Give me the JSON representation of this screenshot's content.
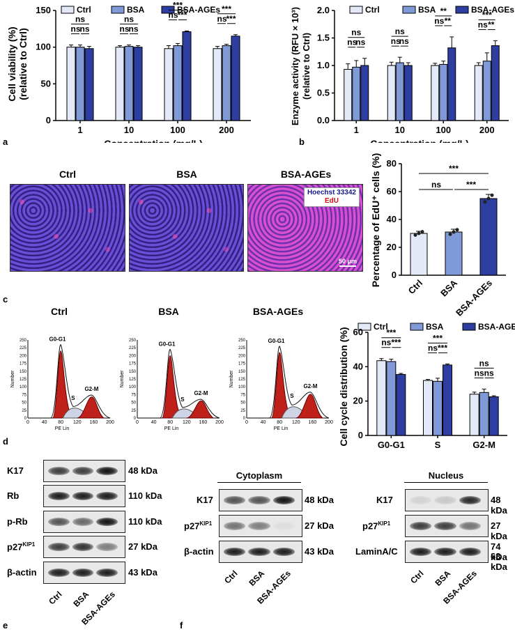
{
  "colors": {
    "ctrl": "#e3e9f6",
    "bsa": "#7f9ad6",
    "ages": "#2e3da0"
  },
  "legend": [
    "Ctrl",
    "BSA",
    "BSA-AGEs"
  ],
  "panel_labels": {
    "a": "a",
    "b": "b",
    "c": "c",
    "d": "d",
    "e": "e",
    "f": "f"
  },
  "chart_data": [
    {
      "id": "a",
      "type": "bar",
      "title": "",
      "ylabel_line1": "Cell viability (%)",
      "ylabel_line2": "(relative to Ctrl)",
      "xlabel": "Concentration (mg/L)",
      "categories": [
        "1",
        "10",
        "100",
        "200"
      ],
      "ylim": [
        0,
        150
      ],
      "yticks": [
        "0",
        "50",
        "100",
        "150"
      ],
      "series": [
        {
          "name": "Ctrl",
          "values": [
            100,
            100,
            98,
            98
          ],
          "err": [
            3,
            2,
            4,
            3
          ]
        },
        {
          "name": "BSA",
          "values": [
            100,
            101,
            102,
            102
          ],
          "err": [
            3,
            2,
            3,
            2
          ]
        },
        {
          "name": "BSA-AGEs",
          "values": [
            98,
            100,
            121,
            115
          ],
          "err": [
            3,
            2,
            1,
            2
          ]
        }
      ],
      "annotations": [
        [
          "ns",
          "ns",
          "ns"
        ],
        [
          "ns",
          "ns",
          "ns"
        ],
        [
          "***",
          "ns",
          "***"
        ],
        [
          "***",
          "ns",
          "***"
        ]
      ]
    },
    {
      "id": "b",
      "type": "bar",
      "ylabel_line1": "Enzyme activity (RFU × 10³)",
      "ylabel_line2": "(relative to Ctrl)",
      "xlabel": "Concentration (mg/L)",
      "categories": [
        "1",
        "10",
        "100",
        "200"
      ],
      "ylim": [
        0,
        2.0
      ],
      "yticks": [
        "0.0",
        "0.5",
        "1.0",
        "1.5",
        "2.0"
      ],
      "series": [
        {
          "name": "Ctrl",
          "values": [
            0.93,
            1.0,
            1.0,
            1.0
          ],
          "err": [
            0.1,
            0.06,
            0.04,
            0.05
          ]
        },
        {
          "name": "BSA",
          "values": [
            0.97,
            1.05,
            1.02,
            1.08
          ],
          "err": [
            0.12,
            0.1,
            0.06,
            0.15
          ]
        },
        {
          "name": "BSA-AGEs",
          "values": [
            1.0,
            1.0,
            1.32,
            1.36
          ],
          "err": [
            0.13,
            0.05,
            0.2,
            0.09
          ]
        }
      ],
      "annotations": [
        [
          "ns",
          "ns",
          "ns"
        ],
        [
          "ns",
          "ns",
          "ns"
        ],
        [
          "**",
          "ns",
          "**"
        ],
        [
          "***",
          "ns",
          "**"
        ]
      ]
    },
    {
      "id": "c",
      "type": "bar",
      "ylabel": "Percentage of EdU⁺ cells (%)",
      "categories": [
        "Ctrl",
        "BSA",
        "BSA-AGEs"
      ],
      "ylim": [
        0,
        80
      ],
      "yticks": [
        "0",
        "20",
        "40",
        "60",
        "80"
      ],
      "values": [
        30,
        31,
        55
      ],
      "err": [
        1.5,
        2,
        3
      ],
      "annotations": [
        "***",
        "ns",
        "***"
      ]
    },
    {
      "id": "d",
      "type": "bar",
      "ylabel": "Cell cycle distribution (%)",
      "categories": [
        "G0-G1",
        "S",
        "G2-M"
      ],
      "ylim": [
        0,
        60
      ],
      "yticks": [
        "0",
        "20",
        "40",
        "60"
      ],
      "series": [
        {
          "name": "Ctrl",
          "values": [
            43.5,
            32,
            24
          ],
          "err": [
            1.2,
            0.6,
            1.2
          ]
        },
        {
          "name": "BSA",
          "values": [
            43,
            31.5,
            25
          ],
          "err": [
            1.4,
            1.8,
            2
          ]
        },
        {
          "name": "BSA-AGEs",
          "values": [
            35.5,
            41,
            22.5
          ],
          "err": [
            0.6,
            0.6,
            0.6
          ]
        }
      ],
      "annotations": [
        [
          "***",
          "ns",
          "***"
        ],
        [
          "***",
          "ns",
          "***"
        ],
        [
          "ns",
          "ns",
          "ns"
        ]
      ]
    }
  ],
  "microscopy": {
    "titles": [
      "Ctrl",
      "BSA",
      "BSA-AGEs"
    ],
    "stain1": "Hoechst 33342",
    "stain2": "EdU",
    "scale": "50 μm"
  },
  "flow": {
    "titles": [
      "Ctrl",
      "BSA",
      "BSA-AGEs"
    ],
    "ylabel": "Number",
    "xlabel": "PE Lin",
    "yticks": [
      "0",
      "25",
      "50",
      "75",
      "100",
      "125",
      "150",
      "175",
      "200",
      "225",
      "250"
    ],
    "xticks": [
      "0",
      "40",
      "80",
      "120",
      "160",
      "200"
    ],
    "g0": "G0-G1",
    "s": "S",
    "g2": "G2-M"
  },
  "wb_e": {
    "rows": [
      {
        "name": "K17",
        "kda": "48 kDa"
      },
      {
        "name": "Rb",
        "kda": "110 kDa"
      },
      {
        "name": "p-Rb",
        "kda": "110 kDa"
      },
      {
        "name": "p27",
        "sup": "KIP1",
        "kda": "27 kDa"
      },
      {
        "name": "β-actin",
        "kda": "43 kDa"
      }
    ],
    "lanes": [
      "Ctrl",
      "BSA",
      "BSA-AGEs"
    ]
  },
  "wb_f": {
    "cyto_title": "Cytoplasm",
    "nuc_title": "Nucleus",
    "cyto_rows": [
      {
        "name": "K17",
        "kda": "48 kDa"
      },
      {
        "name": "p27",
        "sup": "KIP1",
        "kda": "27 kDa"
      },
      {
        "name": "β-actin",
        "kda": "43 kDa"
      }
    ],
    "nuc_rows": [
      {
        "name": "K17",
        "kda": "48 kDa"
      },
      {
        "name": "p27",
        "sup": "KIP1",
        "kda": "27 kDa"
      },
      {
        "name": "LaminA/C",
        "kda": "74 kDa",
        "kda2": "63 kDa"
      }
    ],
    "lanes": [
      "Ctrl",
      "BSA",
      "BSA-AGEs"
    ]
  }
}
